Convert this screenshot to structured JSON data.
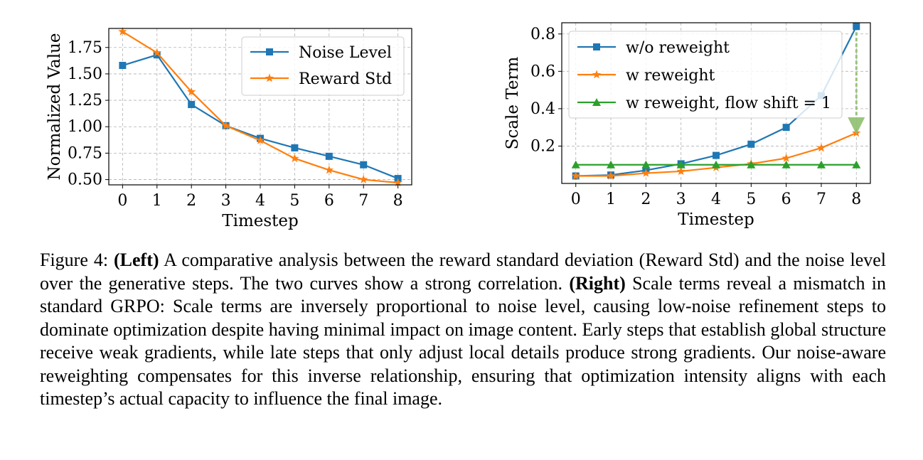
{
  "chart_data": [
    {
      "type": "line",
      "title": "",
      "xlabel": "Timestep",
      "ylabel": "Normalized Value",
      "x": [
        0,
        1,
        2,
        3,
        4,
        5,
        6,
        7,
        8
      ],
      "xticks": [
        "0",
        "1",
        "2",
        "3",
        "4",
        "5",
        "6",
        "7",
        "8"
      ],
      "yticks": [
        "0.50",
        "0.75",
        "1.00",
        "1.25",
        "1.50",
        "1.75"
      ],
      "xlim": [
        -0.4,
        8.4
      ],
      "ylim": [
        0.45,
        1.93
      ],
      "grid": true,
      "legend": "top-right",
      "series": [
        {
          "name": "Noise Level",
          "color": "#1f77b4",
          "marker": "square",
          "values": [
            1.58,
            1.68,
            1.21,
            1.01,
            0.89,
            0.8,
            0.72,
            0.64,
            0.51
          ]
        },
        {
          "name": "Reward Std",
          "color": "#ff7f0e",
          "marker": "star",
          "values": [
            1.9,
            1.7,
            1.33,
            1.01,
            0.87,
            0.7,
            0.59,
            0.5,
            0.47
          ]
        }
      ]
    },
    {
      "type": "line",
      "title": "",
      "xlabel": "Timestep",
      "ylabel": "Scale Term",
      "x": [
        0,
        1,
        2,
        3,
        4,
        5,
        6,
        7,
        8
      ],
      "xticks": [
        "0",
        "1",
        "2",
        "3",
        "4",
        "5",
        "6",
        "7",
        "8"
      ],
      "yticks": [
        "0.2",
        "0.4",
        "0.6",
        "0.8"
      ],
      "xlim": [
        -0.4,
        8.4
      ],
      "ylim": [
        0.0,
        0.86
      ],
      "grid": true,
      "legend": "top-left",
      "annotation": "dashed green arrow at timestep 8 from w/o reweight (0.84) down to w reweight (0.27)",
      "series": [
        {
          "name": "w/o reweight",
          "color": "#1f77b4",
          "marker": "square",
          "values": [
            0.04,
            0.045,
            0.07,
            0.105,
            0.15,
            0.21,
            0.3,
            0.47,
            0.84
          ]
        },
        {
          "name": "w reweight",
          "color": "#ff7f0e",
          "marker": "star",
          "values": [
            0.04,
            0.04,
            0.055,
            0.065,
            0.085,
            0.105,
            0.135,
            0.19,
            0.27
          ]
        },
        {
          "name": "w reweight, flow shift = 1",
          "color": "#2ca02c",
          "marker": "triangle",
          "values": [
            0.1,
            0.1,
            0.1,
            0.1,
            0.1,
            0.1,
            0.1,
            0.1,
            0.1
          ]
        }
      ]
    }
  ],
  "caption": {
    "figure_label": "Figure 4:",
    "left_label": "(Left)",
    "left_text": "A comparative analysis between the reward standard deviation (Reward Std) and the noise level over the generative steps. The two curves show a strong correlation.",
    "right_label": "(Right)",
    "right_text": "Scale terms reveal a mismatch in standard GRPO: Scale terms are inversely proportional to noise level, causing low-noise refinement steps to dominate optimization despite having minimal impact on image content. Early steps that establish global structure receive weak gradients, while late steps that only adjust local details produce strong gradients. Our noise-aware reweighting compensates for this inverse relationship, ensuring that optimization intensity aligns with each timestep’s actual capacity to influence the final image."
  }
}
